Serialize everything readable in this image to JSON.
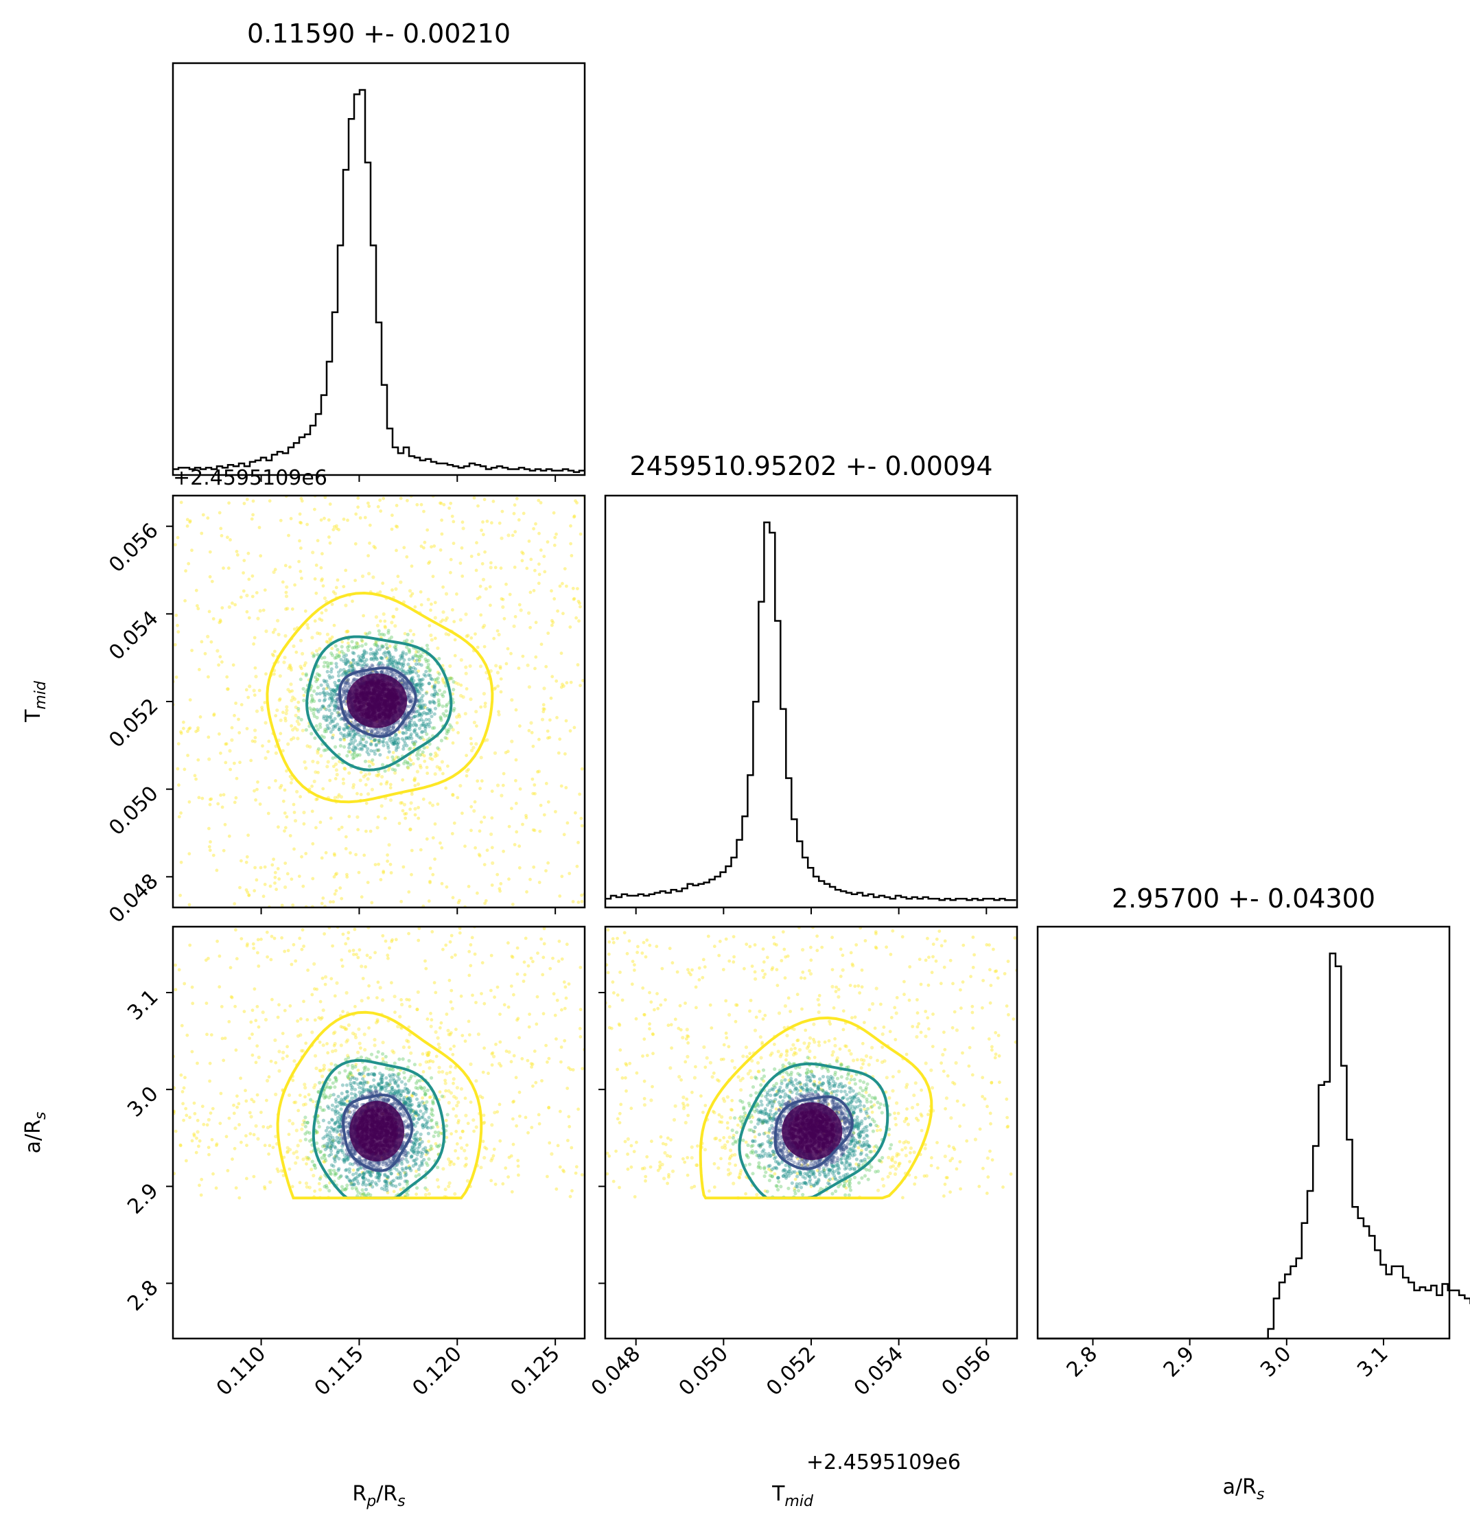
{
  "figure": {
    "titles": {
      "rp": "0.11590 +- 0.00210",
      "tmid": "2459510.95202 +- 0.00094",
      "ars": "2.95700 +- 0.04300"
    },
    "axis_labels": {
      "rp_main": "R",
      "rp_sub1": "p",
      "rp_mid": "/R",
      "rp_sub2": "s",
      "tmid_main": "T",
      "tmid_sub": "mid",
      "ars_main": "a/R",
      "ars_sub": "s"
    },
    "offset_text": "+2.4595109e6"
  },
  "chart_data": [
    {
      "type": "histogram",
      "panel": "Rp/Rs marginal",
      "title": "0.11590 +- 0.00210",
      "xlabel": "Rp/Rs",
      "xlim": [
        0.1055,
        0.1265
      ],
      "xticks": [
        "0.110",
        "0.115",
        "0.120",
        "0.125"
      ],
      "bin_width": 0.00028,
      "counts": [
        4,
        5,
        5,
        4,
        5,
        4,
        5,
        4,
        6,
        5,
        7,
        6,
        8,
        6,
        9,
        10,
        12,
        10,
        14,
        16,
        15,
        19,
        22,
        26,
        28,
        34,
        42,
        55,
        78,
        112,
        158,
        210,
        245,
        262,
        265,
        215,
        158,
        105,
        62,
        32,
        19,
        15,
        19,
        13,
        12,
        10,
        11,
        9,
        8,
        8,
        7,
        6,
        5,
        6,
        8,
        7,
        6,
        4,
        5,
        6,
        5,
        4,
        4,
        5,
        4,
        3,
        4,
        3,
        4,
        3,
        3,
        4,
        3,
        2,
        3
      ]
    },
    {
      "type": "histogram",
      "panel": "Tmid marginal",
      "title": "2459510.95202 +- 0.00094",
      "xlabel": "Tmid",
      "offset": "+2.4595109e6",
      "xlim": [
        0.0473,
        0.0567
      ],
      "xticks": [
        "0.048",
        "0.050",
        "0.052",
        "0.054",
        "0.056"
      ],
      "bin_width": 0.000125,
      "counts": [
        6,
        8,
        7,
        9,
        8,
        8,
        9,
        8,
        9,
        10,
        11,
        10,
        12,
        11,
        13,
        16,
        15,
        16,
        17,
        19,
        21,
        24,
        28,
        34,
        46,
        62,
        90,
        140,
        208,
        262,
        255,
        195,
        135,
        88,
        60,
        45,
        34,
        27,
        21,
        18,
        16,
        14,
        12,
        11,
        10,
        9,
        10,
        8,
        9,
        7,
        8,
        7,
        6,
        8,
        7,
        6,
        7,
        6,
        7,
        6,
        6,
        5,
        6,
        5,
        6,
        6,
        5,
        6,
        5,
        6,
        6,
        5,
        6,
        5,
        5
      ]
    },
    {
      "type": "histogram",
      "panel": "a/Rs marginal",
      "title": "2.95700 +- 0.04300",
      "xlabel": "a/Rs",
      "xlim": [
        2.743,
        3.168
      ],
      "xticks": [
        "2.8",
        "2.9",
        "3.0",
        "3.1"
      ],
      "bin_width": 0.0058,
      "counts": [
        0,
        0,
        0,
        0,
        0,
        0,
        0,
        0,
        0,
        0,
        0,
        0,
        0,
        0,
        0,
        0,
        0,
        0,
        0,
        0,
        0,
        0,
        0,
        0,
        0,
        0,
        0,
        0,
        0,
        0,
        0,
        0,
        0,
        0,
        0,
        0,
        0,
        0,
        0,
        0,
        0,
        6,
        25,
        35,
        40,
        45,
        50,
        72,
        92,
        120,
        158,
        160,
        240,
        232,
        170,
        124,
        82,
        75,
        70,
        64,
        55,
        46,
        40,
        45,
        45,
        38,
        35,
        30,
        32,
        30,
        33,
        27,
        34,
        30,
        30,
        27,
        25,
        22,
        20,
        19,
        19,
        20,
        18,
        19,
        17,
        18,
        20,
        22,
        21,
        20
      ]
    },
    {
      "type": "scatter+contour",
      "panel": "Tmid vs Rp/Rs",
      "xlabel": "Rp/Rs",
      "ylabel": "Tmid",
      "xlim": [
        0.1055,
        0.1265
      ],
      "ylim": [
        0.0473,
        0.0567
      ],
      "yticks": [
        "0.048",
        "0.050",
        "0.052",
        "0.054",
        "0.056"
      ],
      "offset": "+2.4595109e6",
      "center": [
        0.1159,
        0.05202
      ],
      "contour_levels": [
        "inner (dark purple)",
        "middle (teal)",
        "outer (yellow)"
      ],
      "colormap": [
        "#440154",
        "#3b528b",
        "#21918c",
        "#5ec962",
        "#fde725"
      ]
    },
    {
      "type": "scatter+contour",
      "panel": "a/Rs vs Rp/Rs",
      "xlabel": "Rp/Rs",
      "ylabel": "a/Rs",
      "xlim": [
        0.1055,
        0.1265
      ],
      "ylim": [
        2.743,
        3.168
      ],
      "yticks": [
        "2.8",
        "2.9",
        "3.0",
        "3.1"
      ],
      "center": [
        0.1159,
        2.957
      ],
      "lower_cut": 2.888,
      "colormap": [
        "#440154",
        "#3b528b",
        "#21918c",
        "#5ec962",
        "#fde725"
      ]
    },
    {
      "type": "scatter+contour",
      "panel": "a/Rs vs Tmid",
      "xlabel": "Tmid",
      "ylabel": "a/Rs",
      "xlim": [
        0.0473,
        0.0567
      ],
      "ylim": [
        2.743,
        3.168
      ],
      "center": [
        0.05202,
        2.957
      ],
      "lower_cut": 2.888,
      "colormap": [
        "#440154",
        "#3b528b",
        "#21918c",
        "#5ec962",
        "#fde725"
      ]
    }
  ]
}
